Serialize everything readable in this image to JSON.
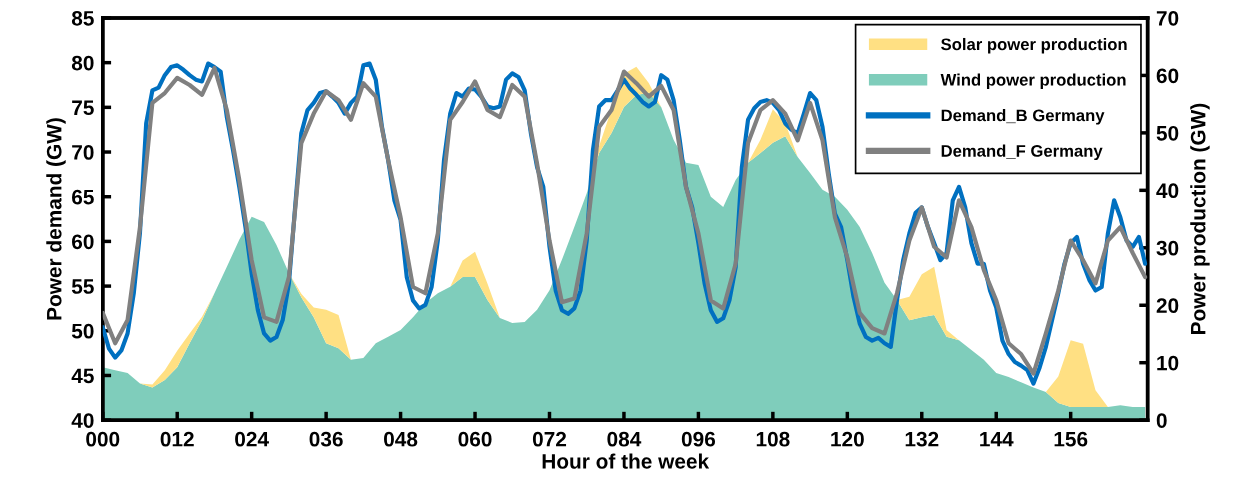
{
  "chart_data": {
    "type": "line",
    "xlabel": "Hour of the week",
    "ylabel": "Power demand (GW)",
    "y2label": "Power production (GW)",
    "x": [
      0,
      1,
      2,
      3,
      4,
      5,
      6,
      7,
      8,
      9,
      10,
      11,
      12,
      13,
      14,
      15,
      16,
      17,
      18,
      19,
      20,
      21,
      22,
      23,
      24,
      25,
      26,
      27,
      28,
      29,
      30,
      31,
      32,
      33,
      34,
      35,
      36,
      37,
      38,
      39,
      40,
      41,
      42,
      43,
      44,
      45,
      46,
      47,
      48,
      49,
      50,
      51,
      52,
      53,
      54,
      55,
      56,
      57,
      58,
      59,
      60,
      61,
      62,
      63,
      64,
      65,
      66,
      67,
      68,
      69,
      70,
      71,
      72,
      73,
      74,
      75,
      76,
      77,
      78,
      79,
      80,
      81,
      82,
      83,
      84,
      85,
      86,
      87,
      88,
      89,
      90,
      91,
      92,
      93,
      94,
      95,
      96,
      97,
      98,
      99,
      100,
      101,
      102,
      103,
      104,
      105,
      106,
      107,
      108,
      109,
      110,
      111,
      112,
      113,
      114,
      115,
      116,
      117,
      118,
      119,
      120,
      121,
      122,
      123,
      124,
      125,
      126,
      127,
      128,
      129,
      130,
      131,
      132,
      133,
      134,
      135,
      136,
      137,
      138,
      139,
      140,
      141,
      142,
      143,
      144,
      145,
      146,
      147,
      148,
      149,
      150,
      151,
      152,
      153,
      154,
      155,
      156,
      157,
      158,
      159,
      160,
      161,
      162,
      163,
      164,
      165,
      166,
      167,
      168
    ],
    "stacked": true,
    "series": [
      {
        "name": "Wind power production",
        "type": "area",
        "axis": "y2",
        "color": "#7fcdbb",
        "x": [
          0,
          2,
          4,
          6,
          8,
          10,
          12,
          14,
          16,
          18,
          20,
          22,
          24,
          26,
          28,
          30,
          32,
          34,
          36,
          38,
          40,
          42,
          44,
          46,
          48,
          50,
          52,
          54,
          56,
          58,
          60,
          62,
          64,
          66,
          68,
          70,
          72,
          74,
          76,
          78,
          80,
          82,
          84,
          86,
          88,
          90,
          92,
          94,
          96,
          98,
          100,
          102,
          104,
          106,
          108,
          110,
          112,
          114,
          116,
          118,
          120,
          122,
          124,
          126,
          128,
          130,
          132,
          134,
          136,
          138,
          140,
          142,
          144,
          146,
          148,
          150,
          152,
          154,
          156,
          158,
          160,
          162,
          164,
          166,
          168
        ],
        "values": [
          9.2,
          8.7,
          8.2,
          6.4,
          5.7,
          7.0,
          9.2,
          13.4,
          17.4,
          22.1,
          26.7,
          31.4,
          35.4,
          34.5,
          30.5,
          25.6,
          21.4,
          17.9,
          13.4,
          12.5,
          10.5,
          10.8,
          13.4,
          14.5,
          15.7,
          17.9,
          20.4,
          22.1,
          23.2,
          24.9,
          24.9,
          20.9,
          17.8,
          16.9,
          17.1,
          19.2,
          22.6,
          27.9,
          33.6,
          39.5,
          46.5,
          50.0,
          54.5,
          56.6,
          57.0,
          54.5,
          48.8,
          44.8,
          44.4,
          38.9,
          37.1,
          41.8,
          44.8,
          46.5,
          48.3,
          49.4,
          45.8,
          43.0,
          40.1,
          38.9,
          36.6,
          33.6,
          29.1,
          23.9,
          20.9,
          17.4,
          17.9,
          18.3,
          14.5,
          13.9,
          12.2,
          10.5,
          8.2,
          7.5,
          6.6,
          5.7,
          4.9,
          3.0,
          2.3,
          2.3,
          2.3,
          2.3,
          2.6,
          2.3,
          2.3
        ]
      },
      {
        "name": "Solar power production",
        "type": "area",
        "axis": "y2",
        "color": "#ffe083",
        "x": [
          0,
          2,
          4,
          6,
          8,
          10,
          12,
          14,
          16,
          18,
          20,
          22,
          24,
          26,
          28,
          30,
          32,
          34,
          36,
          38,
          40,
          42,
          44,
          46,
          48,
          50,
          52,
          54,
          56,
          58,
          60,
          62,
          64,
          66,
          68,
          70,
          72,
          74,
          76,
          78,
          80,
          82,
          84,
          86,
          88,
          90,
          92,
          94,
          96,
          98,
          100,
          102,
          104,
          106,
          108,
          110,
          112,
          114,
          116,
          118,
          120,
          122,
          124,
          126,
          128,
          130,
          132,
          134,
          136,
          138,
          140,
          142,
          144,
          146,
          148,
          150,
          152,
          154,
          156,
          158,
          160,
          162,
          164,
          166,
          168
        ],
        "values": [
          0,
          0,
          0,
          0,
          0.5,
          1.7,
          2.9,
          1.7,
          0.6,
          0,
          0,
          0,
          0,
          0,
          0,
          0,
          0.6,
          1.7,
          5.8,
          5.8,
          0,
          0,
          0,
          0,
          0,
          0,
          0,
          0,
          0,
          2.9,
          4.4,
          2.9,
          0,
          0,
          0,
          0,
          0,
          0,
          0,
          0,
          1.2,
          4.1,
          5.8,
          4.9,
          1.7,
          0,
          0,
          0,
          0,
          0,
          0,
          0,
          0,
          2.3,
          5.8,
          2.3,
          0,
          0,
          0,
          0,
          0,
          0,
          0,
          0,
          0,
          4.1,
          7.5,
          8.4,
          1.2,
          0,
          0,
          0,
          0,
          0,
          0,
          0,
          0,
          4.6,
          11.6,
          11.0,
          2.9,
          0,
          0,
          0,
          0
        ]
      },
      {
        "name": "Demand_B Germany",
        "color": "#0070c0",
        "values": [
          50.4,
          48.0,
          47.0,
          47.8,
          49.7,
          54.2,
          61.0,
          73.2,
          76.9,
          77.2,
          78.6,
          79.5,
          79.7,
          79.2,
          78.6,
          78.1,
          77.9,
          79.9,
          79.5,
          79.0,
          73.9,
          70.2,
          66.1,
          61.6,
          56.4,
          52.3,
          49.7,
          48.9,
          49.3,
          51.2,
          55.3,
          63.8,
          72.1,
          74.7,
          75.5,
          76.6,
          76.8,
          76.2,
          75.5,
          74.3,
          75.5,
          76.2,
          79.7,
          79.9,
          78.1,
          72.8,
          69.1,
          64.6,
          62.4,
          56.0,
          53.4,
          52.5,
          52.9,
          54.9,
          60.1,
          69.1,
          74.3,
          76.6,
          76.2,
          77.1,
          77.0,
          76.2,
          75.1,
          74.9,
          75.1,
          78.1,
          78.8,
          78.4,
          76.9,
          72.1,
          68.3,
          66.1,
          59.4,
          54.5,
          52.3,
          51.9,
          52.5,
          54.5,
          60.1,
          70.2,
          75.1,
          75.8,
          75.8,
          76.9,
          78.1,
          77.1,
          76.4,
          75.6,
          75.1,
          75.6,
          78.6,
          78.1,
          75.8,
          71.3,
          66.1,
          63.8,
          59.8,
          55.3,
          52.3,
          51.0,
          51.4,
          53.4,
          57.1,
          68.3,
          73.6,
          74.9,
          75.6,
          75.8,
          75.5,
          74.7,
          73.2,
          72.5,
          72.1,
          74.3,
          76.6,
          75.8,
          72.8,
          67.6,
          63.1,
          61.6,
          57.9,
          53.8,
          50.8,
          49.3,
          48.9,
          49.2,
          48.6,
          48.2,
          53.4,
          57.9,
          60.9,
          63.2,
          63.8,
          61.6,
          59.8,
          57.9,
          58.7,
          64.6,
          66.1,
          63.8,
          59.8,
          57.5,
          57.5,
          54.5,
          52.6,
          48.9,
          47.4,
          46.5,
          46.1,
          45.6,
          44.1,
          45.9,
          48.2,
          51.2,
          54.2,
          57.5,
          59.8,
          60.5,
          57.5,
          55.7,
          54.5,
          54.9,
          60.9,
          64.6,
          62.7,
          60.1,
          59.4,
          60.5,
          57.5
        ]
      },
      {
        "name": "Demand_F Germany",
        "color": "#808080",
        "x": [
          0,
          2,
          4,
          6,
          8,
          10,
          12,
          14,
          16,
          18,
          20,
          22,
          24,
          26,
          28,
          30,
          32,
          34,
          36,
          38,
          40,
          42,
          44,
          46,
          48,
          50,
          52,
          54,
          56,
          58,
          60,
          62,
          64,
          66,
          68,
          70,
          72,
          74,
          76,
          78,
          80,
          82,
          84,
          86,
          88,
          90,
          92,
          94,
          96,
          98,
          100,
          102,
          104,
          106,
          108,
          110,
          112,
          114,
          116,
          118,
          120,
          122,
          124,
          126,
          128,
          130,
          132,
          134,
          136,
          138,
          140,
          142,
          144,
          146,
          148,
          150,
          152,
          154,
          156,
          158,
          160,
          162,
          164,
          166,
          168
        ],
        "values": [
          52.0,
          48.6,
          51.2,
          61.6,
          75.5,
          76.6,
          78.3,
          77.5,
          76.4,
          79.4,
          74.7,
          66.9,
          57.9,
          51.5,
          51.0,
          56.0,
          71.0,
          74.3,
          76.8,
          75.8,
          73.6,
          77.7,
          76.2,
          69.1,
          62.7,
          54.9,
          54.2,
          60.9,
          73.6,
          75.6,
          77.9,
          74.7,
          73.9,
          77.5,
          76.2,
          68.7,
          60.1,
          53.2,
          53.6,
          60.9,
          72.8,
          74.7,
          79.0,
          77.7,
          76.2,
          77.4,
          74.7,
          66.1,
          60.9,
          53.4,
          52.5,
          57.5,
          71.0,
          74.7,
          75.8,
          74.3,
          71.3,
          75.5,
          71.3,
          62.7,
          58.2,
          52.0,
          50.3,
          49.7,
          54.2,
          60.1,
          63.8,
          59.4,
          58.2,
          64.6,
          61.6,
          56.8,
          53.4,
          48.6,
          47.4,
          45.2,
          49.7,
          54.5,
          60.1,
          57.9,
          55.3,
          60.1,
          61.6,
          58.7,
          56.0
        ]
      }
    ],
    "xlim": [
      0,
      168.4
    ],
    "xticks": [
      {
        "value": 0,
        "label": "000"
      },
      {
        "value": 12,
        "label": "012"
      },
      {
        "value": 24,
        "label": "024"
      },
      {
        "value": 36,
        "label": "036"
      },
      {
        "value": 48,
        "label": "048"
      },
      {
        "value": 60,
        "label": "060"
      },
      {
        "value": 72,
        "label": "072"
      },
      {
        "value": 84,
        "label": "084"
      },
      {
        "value": 96,
        "label": "096"
      },
      {
        "value": 108,
        "label": "108"
      },
      {
        "value": 120,
        "label": "120"
      },
      {
        "value": 132,
        "label": "132"
      },
      {
        "value": 144,
        "label": "144"
      },
      {
        "value": 156,
        "label": "156"
      }
    ],
    "ylim": [
      40,
      85
    ],
    "yticks": [
      40,
      45,
      50,
      55,
      60,
      65,
      70,
      75,
      80,
      85
    ],
    "y2lim": [
      0,
      70
    ],
    "y2ticks": [
      0,
      10,
      20,
      30,
      40,
      50,
      60,
      70
    ],
    "legend": "top right",
    "grid": false
  }
}
